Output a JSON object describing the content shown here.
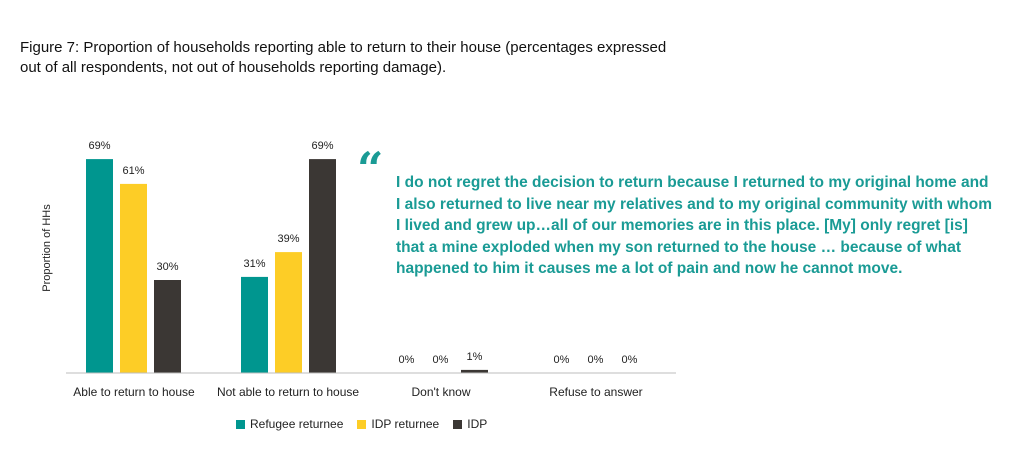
{
  "title": "Figure 7: Proportion of households reporting able to return to their house (percentages expressed out of all respondents, not out of households reporting damage).",
  "quote": {
    "mark": "“",
    "text": "I do not regret the decision to return because I returned to my original home and I also returned to live near my relatives and to my original community with whom I lived and grew up…all of our memories are in this place. [My] only regret [is] that a mine exploded when my son returned to the house … because of what happened to him it causes me a lot of pain and now he cannot move."
  },
  "colors": {
    "refugee_returnee": "#00968f",
    "idp_returnee": "#fdcd26",
    "idp": "#3b3734",
    "quote": "#1a9b95"
  },
  "chart_data": {
    "type": "bar",
    "title": "",
    "xlabel": "",
    "ylabel": "Proportion of HHs",
    "ylim": [
      0,
      80
    ],
    "categories": [
      "Able to return to house",
      "Not able to return to house",
      "Don't know",
      "Refuse to answer"
    ],
    "series": [
      {
        "name": "Refugee returnee",
        "color": "#00968f",
        "values": [
          69,
          31,
          0,
          0
        ],
        "labels": [
          "69%",
          "31%",
          "0%",
          "0%"
        ]
      },
      {
        "name": "IDP returnee",
        "color": "#fdcd26",
        "values": [
          61,
          39,
          0,
          0
        ],
        "labels": [
          "61%",
          "39%",
          "0%",
          "0%"
        ]
      },
      {
        "name": "IDP",
        "color": "#3b3734",
        "values": [
          30,
          69,
          1,
          0
        ],
        "labels": [
          "30%",
          "69%",
          "1%",
          "0%"
        ]
      }
    ],
    "grid": false,
    "legend_position": "bottom"
  }
}
